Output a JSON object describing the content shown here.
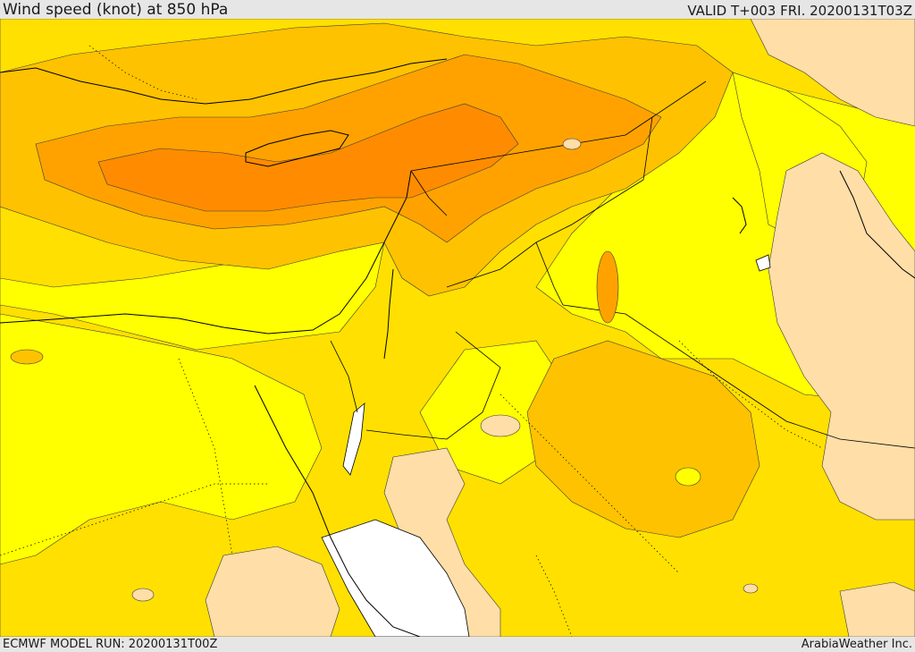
{
  "header": {
    "title": "Wind speed (knot) at 850 hPa",
    "valid": "VALID T+003 FRI. 20200131T03Z"
  },
  "footer": {
    "model_run": "ECMWF MODEL RUN: 20200131T00Z",
    "credit": "ArabiaWeather Inc."
  },
  "map": {
    "variable": "wind-speed-850hPa",
    "colors": {
      "background_band": "#ffff00",
      "band_1": "#ffe000",
      "band_2": "#ffc200",
      "band_3": "#ffa200",
      "band_4": "#ff8c00",
      "calm": "#ffdea8",
      "no_data": "#ffffff",
      "coastline": "#000000",
      "border": "#000000",
      "contour": "#3a3a3a"
    }
  }
}
